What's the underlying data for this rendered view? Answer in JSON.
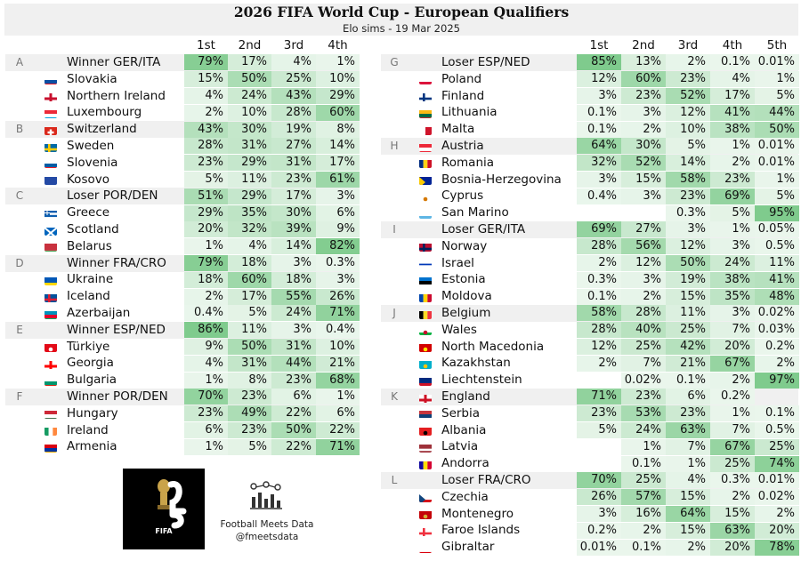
{
  "header": {
    "title": "2026 FIFA World Cup - European Qualifiers",
    "subtitle": "Elo sims - 19 Mar 2025"
  },
  "columns": {
    "left": [
      "1st",
      "2nd",
      "3rd",
      "4th"
    ],
    "right": [
      "1st",
      "2nd",
      "3rd",
      "4th",
      "5th"
    ]
  },
  "chart_data": {
    "type": "table",
    "value_unit": "percent",
    "left_panel": [
      {
        "group": "A",
        "teams": [
          {
            "name": "Winner GER/ITA",
            "flag": null,
            "p": [
              "79%",
              "17%",
              "4%",
              "1%"
            ]
          },
          {
            "name": "Slovakia",
            "flag": "slovakia",
            "p": [
              "15%",
              "50%",
              "25%",
              "10%"
            ]
          },
          {
            "name": "Northern Ireland",
            "flag": "northern-ireland",
            "p": [
              "4%",
              "24%",
              "43%",
              "29%"
            ]
          },
          {
            "name": "Luxembourg",
            "flag": "luxembourg",
            "p": [
              "2%",
              "10%",
              "28%",
              "60%"
            ]
          }
        ]
      },
      {
        "group": "B",
        "teams": [
          {
            "name": "Switzerland",
            "flag": "switzerland",
            "p": [
              "43%",
              "30%",
              "19%",
              "8%"
            ]
          },
          {
            "name": "Sweden",
            "flag": "sweden",
            "p": [
              "28%",
              "31%",
              "27%",
              "14%"
            ]
          },
          {
            "name": "Slovenia",
            "flag": "slovenia",
            "p": [
              "23%",
              "29%",
              "31%",
              "17%"
            ]
          },
          {
            "name": "Kosovo",
            "flag": "kosovo",
            "p": [
              "5%",
              "11%",
              "23%",
              "61%"
            ]
          }
        ]
      },
      {
        "group": "C",
        "teams": [
          {
            "name": "Loser POR/DEN",
            "flag": null,
            "p": [
              "51%",
              "29%",
              "17%",
              "3%"
            ]
          },
          {
            "name": "Greece",
            "flag": "greece",
            "p": [
              "29%",
              "35%",
              "30%",
              "6%"
            ]
          },
          {
            "name": "Scotland",
            "flag": "scotland",
            "p": [
              "20%",
              "32%",
              "39%",
              "9%"
            ]
          },
          {
            "name": "Belarus",
            "flag": "belarus",
            "p": [
              "1%",
              "4%",
              "14%",
              "82%"
            ]
          }
        ]
      },
      {
        "group": "D",
        "teams": [
          {
            "name": "Winner FRA/CRO",
            "flag": null,
            "p": [
              "79%",
              "18%",
              "3%",
              "0.3%"
            ]
          },
          {
            "name": "Ukraine",
            "flag": "ukraine",
            "p": [
              "18%",
              "60%",
              "18%",
              "3%"
            ]
          },
          {
            "name": "Iceland",
            "flag": "iceland",
            "p": [
              "2%",
              "17%",
              "55%",
              "26%"
            ]
          },
          {
            "name": "Azerbaijan",
            "flag": "azerbaijan",
            "p": [
              "0.4%",
              "5%",
              "24%",
              "71%"
            ]
          }
        ]
      },
      {
        "group": "E",
        "teams": [
          {
            "name": "Winner ESP/NED",
            "flag": null,
            "p": [
              "86%",
              "11%",
              "3%",
              "0.4%"
            ]
          },
          {
            "name": "Türkiye",
            "flag": "turkiye",
            "p": [
              "9%",
              "50%",
              "31%",
              "10%"
            ]
          },
          {
            "name": "Georgia",
            "flag": "georgia",
            "p": [
              "4%",
              "31%",
              "44%",
              "21%"
            ]
          },
          {
            "name": "Bulgaria",
            "flag": "bulgaria",
            "p": [
              "1%",
              "8%",
              "23%",
              "68%"
            ]
          }
        ]
      },
      {
        "group": "F",
        "teams": [
          {
            "name": "Winner POR/DEN",
            "flag": null,
            "p": [
              "70%",
              "23%",
              "6%",
              "1%"
            ]
          },
          {
            "name": "Hungary",
            "flag": "hungary",
            "p": [
              "23%",
              "49%",
              "22%",
              "6%"
            ]
          },
          {
            "name": "Ireland",
            "flag": "ireland",
            "p": [
              "6%",
              "23%",
              "50%",
              "22%"
            ]
          },
          {
            "name": "Armenia",
            "flag": "armenia",
            "p": [
              "1%",
              "5%",
              "22%",
              "71%"
            ]
          }
        ]
      }
    ],
    "right_panel": [
      {
        "group": "G",
        "teams": [
          {
            "name": "Loser ESP/NED",
            "flag": null,
            "p": [
              "85%",
              "13%",
              "2%",
              "0.1%",
              "0.01%"
            ]
          },
          {
            "name": "Poland",
            "flag": "poland",
            "p": [
              "12%",
              "60%",
              "23%",
              "4%",
              "1%"
            ]
          },
          {
            "name": "Finland",
            "flag": "finland",
            "p": [
              "3%",
              "23%",
              "52%",
              "17%",
              "5%"
            ]
          },
          {
            "name": "Lithuania",
            "flag": "lithuania",
            "p": [
              "0.1%",
              "3%",
              "12%",
              "41%",
              "44%"
            ]
          },
          {
            "name": "Malta",
            "flag": "malta",
            "p": [
              "0.1%",
              "2%",
              "10%",
              "38%",
              "50%"
            ]
          }
        ]
      },
      {
        "group": "H",
        "teams": [
          {
            "name": "Austria",
            "flag": "austria",
            "p": [
              "64%",
              "30%",
              "5%",
              "1%",
              "0.01%"
            ]
          },
          {
            "name": "Romania",
            "flag": "romania",
            "p": [
              "32%",
              "52%",
              "14%",
              "2%",
              "0.01%"
            ]
          },
          {
            "name": "Bosnia-Herzegovina",
            "flag": "bosnia",
            "p": [
              "3%",
              "15%",
              "58%",
              "23%",
              "1%"
            ]
          },
          {
            "name": "Cyprus",
            "flag": "cyprus",
            "p": [
              "0.4%",
              "3%",
              "23%",
              "69%",
              "5%"
            ]
          },
          {
            "name": "San Marino",
            "flag": "san-marino",
            "p": [
              "",
              "",
              "0.3%",
              "5%",
              "95%"
            ]
          }
        ]
      },
      {
        "group": "I",
        "teams": [
          {
            "name": "Loser GER/ITA",
            "flag": null,
            "p": [
              "69%",
              "27%",
              "3%",
              "1%",
              "0.05%"
            ]
          },
          {
            "name": "Norway",
            "flag": "norway",
            "p": [
              "28%",
              "56%",
              "12%",
              "3%",
              "0.5%"
            ]
          },
          {
            "name": "Israel",
            "flag": "israel",
            "p": [
              "2%",
              "12%",
              "50%",
              "24%",
              "11%"
            ]
          },
          {
            "name": "Estonia",
            "flag": "estonia",
            "p": [
              "0.3%",
              "3%",
              "19%",
              "38%",
              "41%"
            ]
          },
          {
            "name": "Moldova",
            "flag": "moldova",
            "p": [
              "0.1%",
              "2%",
              "15%",
              "35%",
              "48%"
            ]
          }
        ]
      },
      {
        "group": "J",
        "teams": [
          {
            "name": "Belgium",
            "flag": "belgium",
            "p": [
              "58%",
              "28%",
              "11%",
              "3%",
              "0.02%"
            ]
          },
          {
            "name": "Wales",
            "flag": "wales",
            "p": [
              "28%",
              "40%",
              "25%",
              "7%",
              "0.03%"
            ]
          },
          {
            "name": "North Macedonia",
            "flag": "north-macedonia",
            "p": [
              "12%",
              "25%",
              "42%",
              "20%",
              "0.2%"
            ]
          },
          {
            "name": "Kazakhstan",
            "flag": "kazakhstan",
            "p": [
              "2%",
              "7%",
              "21%",
              "67%",
              "2%"
            ]
          },
          {
            "name": "Liechtenstein",
            "flag": "liechtenstein",
            "p": [
              "",
              "0.02%",
              "0.1%",
              "2%",
              "97%"
            ]
          }
        ]
      },
      {
        "group": "K",
        "teams": [
          {
            "name": "England",
            "flag": "england",
            "p": [
              "71%",
              "23%",
              "6%",
              "0.2%",
              ""
            ]
          },
          {
            "name": "Serbia",
            "flag": "serbia",
            "p": [
              "23%",
              "53%",
              "23%",
              "1%",
              "0.1%"
            ]
          },
          {
            "name": "Albania",
            "flag": "albania",
            "p": [
              "5%",
              "24%",
              "63%",
              "7%",
              "0.5%"
            ]
          },
          {
            "name": "Latvia",
            "flag": "latvia",
            "p": [
              "",
              "1%",
              "7%",
              "67%",
              "25%"
            ]
          },
          {
            "name": "Andorra",
            "flag": "andorra",
            "p": [
              "",
              "0.1%",
              "1%",
              "25%",
              "74%"
            ]
          }
        ]
      },
      {
        "group": "L",
        "teams": [
          {
            "name": "Loser FRA/CRO",
            "flag": null,
            "p": [
              "70%",
              "25%",
              "4%",
              "0.3%",
              "0.01%"
            ]
          },
          {
            "name": "Czechia",
            "flag": "czechia",
            "p": [
              "26%",
              "57%",
              "15%",
              "2%",
              "0.02%"
            ]
          },
          {
            "name": "Montenegro",
            "flag": "montenegro",
            "p": [
              "3%",
              "16%",
              "64%",
              "15%",
              "2%"
            ]
          },
          {
            "name": "Faroe Islands",
            "flag": "faroe-islands",
            "p": [
              "0.2%",
              "2%",
              "15%",
              "63%",
              "20%"
            ]
          },
          {
            "name": "Gibraltar",
            "flag": "gibraltar",
            "p": [
              "0.01%",
              "0.1%",
              "2%",
              "20%",
              "78%"
            ]
          }
        ]
      }
    ]
  },
  "colors": {
    "heat_low": "#eaf6ec",
    "heat_high": "#7fcb8d",
    "band": "#f0f0f0"
  },
  "logos": {
    "fifa_logo_text": "FIFA",
    "brand_name": "Football Meets Data",
    "brand_handle": "@fmeetsdata",
    "brand_icon": "bar-chart-icon"
  }
}
